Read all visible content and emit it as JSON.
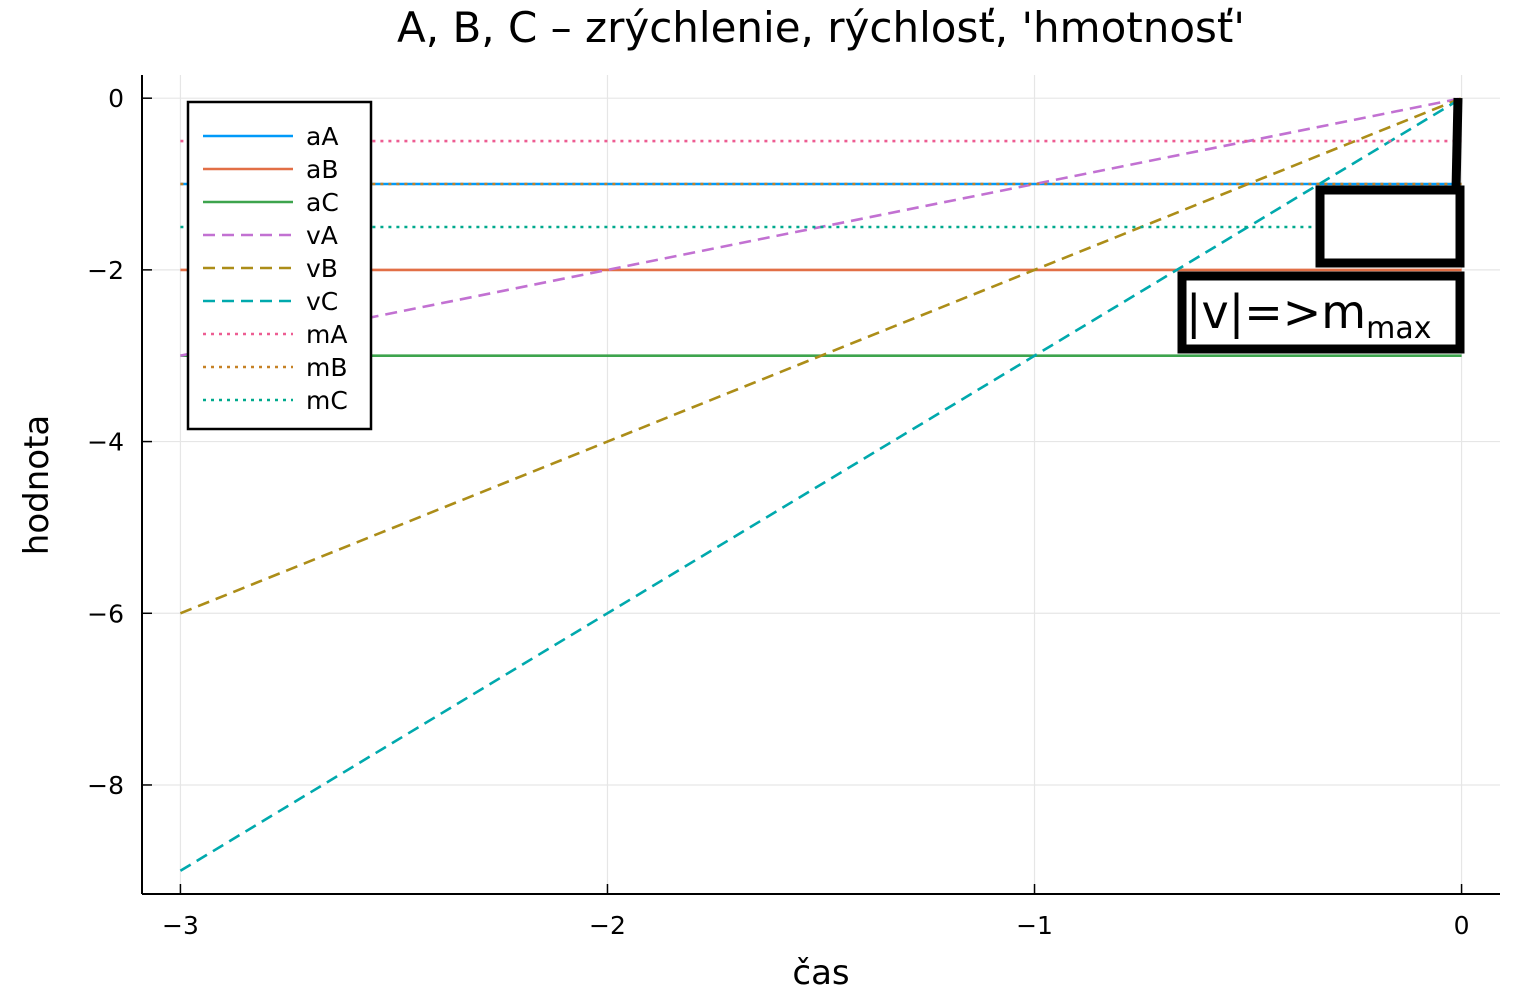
{
  "chart_data": {
    "type": "line",
    "title": "A, B, C – zrýchlenie, rýchlosť, 'hmotnosť'",
    "xlabel": "čas",
    "ylabel": "hodnota",
    "xlim": [
      -3.09,
      0.09
    ],
    "ylim": [
      -9.27,
      0.27
    ],
    "xticks": [
      -3,
      -2,
      -1,
      0
    ],
    "yticks": [
      0,
      -2,
      -4,
      -6,
      -8
    ],
    "xtick_labels": [
      "−3",
      "−2",
      "−1",
      "0"
    ],
    "ytick_labels": [
      "0",
      "−2",
      "−4",
      "−6",
      "−8"
    ],
    "grid": true,
    "legend_position": "top-left",
    "series": [
      {
        "name": "aA",
        "style": "solid",
        "color": "#009af9",
        "x": [
          -3,
          0
        ],
        "y": [
          -1,
          -1
        ]
      },
      {
        "name": "aB",
        "style": "solid",
        "color": "#e26f46",
        "x": [
          -3,
          0
        ],
        "y": [
          -2,
          -2
        ]
      },
      {
        "name": "aC",
        "style": "solid",
        "color": "#3da44d",
        "x": [
          -3,
          0
        ],
        "y": [
          -3,
          -3
        ]
      },
      {
        "name": "vA",
        "style": "dashed",
        "color": "#c271d2",
        "x": [
          -3,
          0
        ],
        "y": [
          -3,
          0
        ]
      },
      {
        "name": "vB",
        "style": "dashed",
        "color": "#ac8d18",
        "x": [
          -3,
          0
        ],
        "y": [
          -6,
          0
        ]
      },
      {
        "name": "vC",
        "style": "dashed",
        "color": "#00a9ad",
        "x": [
          -3,
          0
        ],
        "y": [
          -9,
          0
        ]
      },
      {
        "name": "mA",
        "style": "dotted",
        "color": "#ed5d92",
        "x": [
          -3,
          0
        ],
        "y": [
          -0.5,
          -0.5
        ]
      },
      {
        "name": "mB",
        "style": "dotted",
        "color": "#c68125",
        "x": [
          -3,
          0
        ],
        "y": [
          -1,
          -1
        ]
      },
      {
        "name": "mC",
        "style": "dotted",
        "color": "#00a98d",
        "x": [
          -3,
          0
        ],
        "y": [
          -1.5,
          -1.5
        ]
      }
    ],
    "annotation": {
      "text_main": "|v|=>m",
      "text_sub": "max"
    }
  }
}
